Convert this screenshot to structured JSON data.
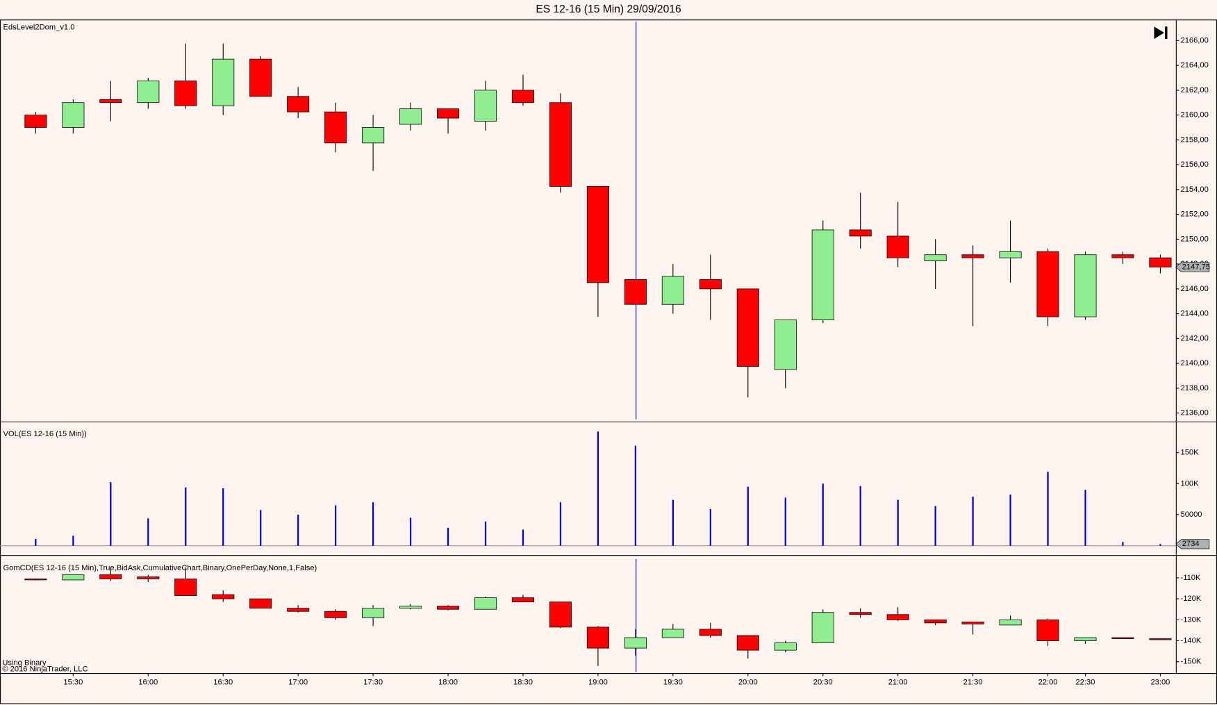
{
  "title": "ES 12-16 (15 Min)  29/09/2016",
  "chart_data": [
    {
      "type": "candlestick",
      "title": "EdsLevel2Dom_v1.0",
      "up_color": "#90ee90",
      "down_color": "#ff0000",
      "open": [
        2160.0,
        2159.0,
        2161.25,
        2161.0,
        2162.75,
        2160.75,
        2164.5,
        2161.5,
        2160.25,
        2157.75,
        2159.25,
        2160.5,
        2159.5,
        2162.0,
        2161.0,
        2154.25,
        2146.75,
        2144.75,
        2146.75,
        2146.0,
        2139.5,
        2143.5,
        2150.75,
        2150.25,
        2148.25,
        2148.75,
        2148.5,
        2149.0,
        2143.75,
        2148.75,
        2148.5
      ],
      "high": [
        2160.25,
        2161.25,
        2162.75,
        2163.0,
        2165.75,
        2165.75,
        2164.75,
        2162.25,
        2161.0,
        2160.0,
        2161.0,
        2160.5,
        2162.75,
        2163.25,
        2161.75,
        2154.25,
        2146.75,
        2148.0,
        2148.75,
        2146.0,
        2143.5,
        2151.5,
        2153.75,
        2153.0,
        2150.0,
        2149.5,
        2151.5,
        2149.25,
        2149.0,
        2149.0,
        2148.75
      ],
      "low": [
        2158.5,
        2158.5,
        2159.5,
        2160.5,
        2160.5,
        2160.0,
        2161.5,
        2159.75,
        2157.0,
        2155.5,
        2158.75,
        2158.5,
        2158.75,
        2160.75,
        2153.75,
        2143.75,
        2144.75,
        2144.0,
        2143.5,
        2137.25,
        2138.0,
        2143.25,
        2149.25,
        2147.75,
        2146.0,
        2143.0,
        2146.5,
        2143.0,
        2143.5,
        2148.0,
        2147.25
      ],
      "close": [
        2159.0,
        2161.0,
        2161.0,
        2162.75,
        2160.75,
        2164.5,
        2161.5,
        2160.25,
        2157.75,
        2159.0,
        2160.5,
        2159.75,
        2162.0,
        2161.0,
        2154.25,
        2146.5,
        2144.75,
        2147.0,
        2146.0,
        2139.75,
        2143.5,
        2150.75,
        2150.25,
        2148.5,
        2148.75,
        2148.5,
        2149.0,
        2143.75,
        2148.75,
        2148.5,
        2147.75
      ],
      "ylim": [
        2135.5,
        2167.5
      ],
      "yticks": [
        {
          "value": 2136,
          "label": "2136,00"
        },
        {
          "value": 2138,
          "label": "2138,00"
        },
        {
          "value": 2140,
          "label": "2140,00"
        },
        {
          "value": 2142,
          "label": "2142,00"
        },
        {
          "value": 2144,
          "label": "2144,00"
        },
        {
          "value": 2146,
          "label": "2146,00"
        },
        {
          "value": 2148,
          "label": "2148,00"
        },
        {
          "value": 2150,
          "label": "2150,00"
        },
        {
          "value": 2152,
          "label": "2152,00"
        },
        {
          "value": 2154,
          "label": "2154,00"
        },
        {
          "value": 2156,
          "label": "2156,00"
        },
        {
          "value": 2158,
          "label": "2158,00"
        },
        {
          "value": 2160,
          "label": "2160,00"
        },
        {
          "value": 2162,
          "label": "2162,00"
        },
        {
          "value": 2164,
          "label": "2164,00"
        },
        {
          "value": 2166,
          "label": "2166,00"
        }
      ],
      "last_value": {
        "value": 2147.75,
        "label": "2147,75"
      }
    },
    {
      "type": "bar",
      "title": "VOL(ES 12-16 (15 Min))",
      "color": "#0000cd",
      "values": [
        11000,
        16000,
        102500,
        44000,
        94000,
        92500,
        57500,
        50000,
        65000,
        70000,
        45000,
        29000,
        39000,
        26000,
        70000,
        184000,
        161000,
        74000,
        59000,
        95000,
        77500,
        100000,
        96000,
        74000,
        64000,
        79000,
        82500,
        119000,
        90000,
        6000,
        2734
      ],
      "ylim": [
        -15000,
        197500
      ],
      "yticks": [
        50000,
        {
          "value": 100000,
          "label": "100K"
        },
        {
          "value": 150000,
          "label": "150K"
        }
      ],
      "last_value": 2734
    },
    {
      "type": "candlestick",
      "title": "GomCD(ES 12-16 (15 Min),True,BidAsk,CumulativeChart,Binary,OnePerDay,None,1,False)",
      "up_color": "#90ee90",
      "down_color": "#ff0000",
      "categories": [
        null,
        "15:30",
        null,
        "16:00",
        null,
        "16:30",
        null,
        "17:00",
        null,
        "17:30",
        null,
        "18:00",
        null,
        "18:30",
        null,
        "19:00",
        null,
        "19:30",
        null,
        "20:00",
        null,
        "20:30",
        null,
        "21:00",
        null,
        "21:30",
        null,
        "22:00",
        "22:30",
        null,
        "23:00"
      ],
      "open": [
        -110500,
        -111000,
        -108500,
        -109500,
        -110500,
        -118000,
        -120000,
        -124500,
        -126000,
        -129000,
        -124500,
        -123500,
        -125000,
        -119500,
        -121500,
        -133500,
        -143500,
        -138500,
        -134500,
        -137500,
        -144500,
        -141000,
        -126500,
        -127500,
        -130000,
        -131000,
        -132500,
        -130000,
        -140000,
        -138500,
        -139000
      ],
      "high": [
        -110300,
        -108500,
        -105500,
        -108500,
        -105000,
        -116000,
        -120000,
        -123000,
        -125000,
        -123000,
        -122500,
        -123000,
        -119000,
        -118000,
        -121500,
        -133000,
        -134500,
        -132000,
        -131500,
        -137500,
        -140000,
        -125000,
        -124500,
        -124000,
        -130000,
        -131000,
        -128000,
        -129500,
        -138500,
        -138500,
        -139000
      ],
      "low": [
        -111200,
        -111000,
        -111500,
        -112000,
        -118500,
        -121500,
        -124500,
        -126500,
        -130000,
        -133000,
        -125000,
        -125500,
        -125000,
        -121500,
        -134000,
        -152000,
        -147000,
        -138500,
        -138500,
        -148500,
        -145500,
        -141000,
        -129000,
        -130500,
        -132500,
        -137000,
        -132500,
        -142500,
        -141500,
        -139000,
        -139500
      ],
      "close": [
        -111000,
        -108500,
        -110500,
        -110500,
        -118500,
        -120000,
        -124500,
        -126000,
        -129000,
        -124500,
        -123500,
        -125000,
        -119500,
        -121500,
        -133500,
        -143500,
        -138500,
        -134500,
        -137500,
        -144500,
        -141000,
        -126500,
        -127500,
        -130000,
        -131500,
        -132000,
        -130000,
        -140000,
        -138500,
        -139000,
        -139500
      ],
      "ylim": [
        -155000,
        -101000
      ],
      "yticks": [
        {
          "value": -110000,
          "label": "-110K"
        },
        {
          "value": -120000,
          "label": "-120K"
        },
        {
          "value": -130000,
          "label": "-130K"
        },
        {
          "value": -140000,
          "label": "-140K"
        },
        {
          "value": -150000,
          "label": "-150K"
        }
      ],
      "annotations": [
        "Using Binary",
        "© 2016 NinjaTrader, LLC"
      ]
    }
  ]
}
